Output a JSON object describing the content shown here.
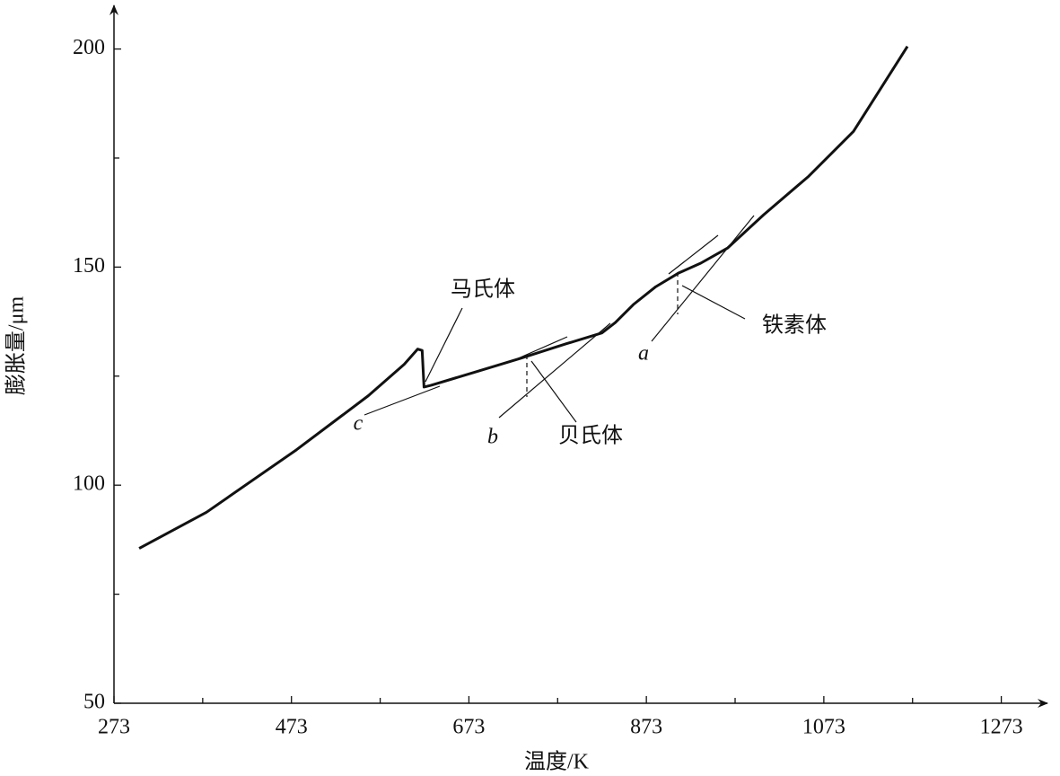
{
  "chart_data": {
    "type": "line",
    "xlabel": "温度/K",
    "ylabel": "膨胀量/μm",
    "x": [
      301.4,
      377.3,
      478.6,
      559.6,
      600.1,
      615.3,
      620.3,
      622.4,
      630.5,
      681.1,
      731.7,
      782.4,
      822.9,
      838.1,
      858.3,
      883.6,
      909.0,
      934.3,
      964.7,
      1005.2,
      1055.8,
      1106.4,
      1167.2
    ],
    "series": [
      {
        "color": "#111111",
        "values": [
          85.5,
          93.8,
          108.1,
          120.5,
          127.7,
          131.2,
          130.9,
          122.5,
          122.9,
          126.0,
          129.1,
          132.4,
          134.9,
          137.3,
          141.4,
          145.5,
          148.6,
          150.9,
          154.4,
          162.0,
          170.8,
          181.1,
          200.6
        ]
      }
    ],
    "xlim": [
      273,
      1325
    ],
    "ylim": [
      50,
      210
    ],
    "xticks": [
      273,
      473,
      673,
      873,
      1073,
      1273
    ],
    "xticks_minor": [
      373,
      573,
      773,
      973,
      1173
    ],
    "yticks": [
      50,
      100,
      150,
      200
    ],
    "yticks_minor": [
      75,
      125,
      175
    ],
    "annotations": [
      "马氏体",
      "贝氏体",
      "铁素体",
      "a",
      "b",
      "c"
    ]
  }
}
